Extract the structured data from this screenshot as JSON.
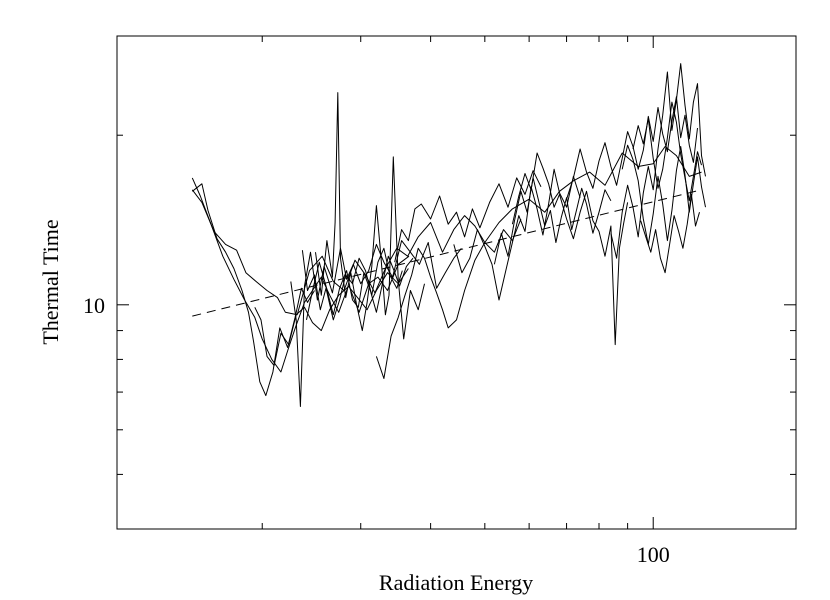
{
  "chart_data": {
    "type": "line",
    "title": "",
    "xlabel": "Radiation Energy",
    "ylabel": "Thermal Time",
    "xscale": "log",
    "yscale": "log",
    "xlim": [
      11,
      180
    ],
    "ylim": [
      4.0,
      30
    ],
    "x_tick_labels": [
      {
        "value": 100,
        "label": "100"
      }
    ],
    "y_tick_labels": [
      {
        "value": 10,
        "label": "10"
      }
    ],
    "x_minor_ticks": [
      20,
      30,
      40,
      50,
      60,
      70,
      80,
      90
    ],
    "y_minor_ticks": [
      5,
      6,
      7,
      8,
      9,
      20
    ],
    "grid": false,
    "legend": "none",
    "line_color": "#000000",
    "series": [
      {
        "style": "solid",
        "x": [
          15.0,
          15.6,
          16.4,
          17.2,
          18.0,
          18.7,
          19.5,
          20.4,
          21.3,
          22.0,
          23.1,
          24.3,
          25.6,
          26.8,
          28.0,
          29.3,
          30.6,
          31.8,
          33.2,
          34.8,
          36.4,
          38.0,
          40.0,
          42.0,
          44.0,
          46.0,
          48.0,
          50.0,
          53.0,
          56.0,
          60.0,
          64.0,
          68.0,
          72.0,
          77.0,
          82.0,
          88.0,
          94.0,
          100.0,
          105.0,
          110.0,
          116.0,
          122.0
        ],
        "y": [
          16.0,
          15.2,
          13.5,
          12.8,
          12.5,
          11.4,
          11.0,
          10.6,
          10.3,
          9.7,
          9.6,
          11.5,
          12.2,
          11.0,
          10.6,
          12.0,
          11.3,
          10.5,
          11.6,
          12.6,
          12.2,
          13.2,
          14.0,
          12.4,
          13.6,
          14.4,
          13.8,
          12.9,
          14.0,
          14.8,
          15.4,
          14.6,
          15.9,
          16.6,
          17.2,
          16.3,
          18.6,
          17.6,
          17.8,
          19.1,
          18.4,
          16.9,
          17.2
        ]
      },
      {
        "style": "solid",
        "x": [
          15.0,
          15.5,
          16.2,
          17.0,
          17.8,
          18.6,
          19.4,
          20.0,
          20.8,
          21.6,
          22.3,
          23.0,
          23.8,
          24.6,
          25.5,
          26.4,
          27.4,
          28.5,
          29.6,
          30.8,
          32.0,
          33.5,
          35.0,
          36.5
        ],
        "y": [
          16.8,
          15.6,
          13.9,
          12.2,
          11.1,
          10.2,
          9.5,
          8.7,
          8.0,
          7.6,
          8.4,
          9.2,
          10.1,
          10.6,
          11.2,
          10.4,
          9.7,
          10.8,
          10.3,
          9.8,
          10.6,
          11.4,
          10.9,
          11.6
        ]
      },
      {
        "style": "solid",
        "x": [
          15.0,
          15.6,
          16.0,
          16.6,
          17.2,
          17.8,
          18.4,
          18.9,
          19.3,
          19.8,
          20.3,
          20.9,
          21.5,
          22.2,
          22.9,
          23.5,
          24.1,
          24.8
        ],
        "y": [
          15.9,
          16.4,
          14.7,
          13.1,
          12.4,
          11.6,
          10.6,
          9.7,
          8.6,
          7.3,
          6.9,
          7.6,
          9.1,
          8.4,
          9.5,
          10.7,
          10.1,
          10.6
        ]
      },
      {
        "style": "solid",
        "x": [
          19.4,
          19.9,
          20.4,
          21.0,
          21.6,
          22.3,
          23.0,
          23.8,
          24.6,
          25.5,
          26.4,
          27.4,
          28.6,
          29.8,
          31.0,
          32.2,
          33.5,
          35.0,
          36.6
        ],
        "y": [
          9.9,
          9.4,
          8.1,
          7.8,
          8.9,
          8.5,
          9.6,
          9.9,
          9.3,
          9.0,
          9.8,
          10.4,
          10.8,
          9.7,
          10.9,
          11.2,
          10.6,
          11.8,
          12.2
        ]
      },
      {
        "style": "solid",
        "x": [
          22.5,
          23.0,
          23.4,
          23.8,
          24.4,
          25.1,
          25.8,
          26.7,
          27.6,
          28.3,
          29.1,
          30.0,
          31.0,
          32.0,
          33.0,
          34.2,
          35.5,
          36.8,
          38.2,
          39.6,
          41.0,
          42.5,
          44.0,
          45.4
        ],
        "y": [
          11.0,
          9.4,
          6.6,
          10.8,
          12.4,
          10.2,
          11.7,
          10.5,
          12.6,
          11.1,
          11.8,
          10.9,
          11.5,
          12.8,
          11.9,
          11.2,
          13.0,
          12.4,
          11.8,
          12.9,
          10.7,
          11.4,
          12.1,
          12.6
        ]
      },
      {
        "style": "solid",
        "x": [
          23.6,
          24.1,
          24.8,
          25.4,
          26.0,
          26.8,
          27.5,
          28.2,
          29.0,
          29.8,
          30.6,
          31.4,
          32.2,
          33.0,
          33.8,
          34.8,
          35.6
        ],
        "y": [
          12.5,
          10.6,
          11.3,
          9.8,
          10.7,
          9.4,
          10.2,
          11.3,
          10.9,
          12.1,
          11.5,
          10.4,
          11.9,
          12.6,
          11.3,
          10.7,
          11.5
        ]
      },
      {
        "style": "solid",
        "x": [
          24.0,
          24.6,
          25.3,
          26.0,
          26.8,
          27.5,
          28.3,
          29.0,
          29.7,
          30.4,
          31.2,
          32.0,
          32.8,
          33.6,
          34.4,
          35.2,
          36.2,
          37.2
        ],
        "y": [
          9.4,
          10.6,
          11.9,
          10.8,
          9.6,
          10.7,
          11.5,
          10.2,
          9.9,
          11.4,
          10.6,
          9.7,
          10.9,
          12.2,
          11.5,
          10.8,
          11.7,
          12.1
        ]
      },
      {
        "style": "solid",
        "x": [
          24.9,
          25.5,
          26.1,
          26.7,
          27.0,
          27.3,
          27.6,
          28.2,
          28.8,
          29.5,
          30.2,
          30.8,
          31.4,
          32.0,
          32.6,
          33.2,
          33.7,
          34.3,
          35.0,
          35.8,
          36.8,
          38.0,
          39.0
        ],
        "y": [
          12.4,
          10.4,
          13.0,
          11.2,
          14.0,
          23.8,
          12.1,
          10.3,
          11.4,
          10.0,
          9.0,
          10.1,
          11.7,
          15.0,
          12.2,
          9.6,
          10.4,
          18.3,
          11.1,
          8.7,
          10.6,
          9.8,
          10.9
        ]
      },
      {
        "style": "solid",
        "x": [
          32.0,
          33.0,
          34.0,
          35.0,
          36.0,
          37.0,
          38.0,
          39.0,
          40.0,
          41.0,
          42.0,
          43.0,
          44.5,
          46.0,
          48.0,
          50.0,
          52.0,
          54.0,
          56.0,
          58.0
        ],
        "y": [
          8.1,
          7.4,
          8.8,
          9.5,
          10.4,
          11.3,
          12.6,
          12.1,
          11.2,
          10.5,
          9.8,
          9.1,
          9.4,
          10.6,
          12.0,
          12.9,
          12.4,
          13.6,
          13.0,
          14.2
        ]
      },
      {
        "style": "solid",
        "x": [
          34.5,
          35.5,
          36.5,
          37.5,
          38.5,
          40.0,
          41.5,
          43.0,
          44.5,
          46.0,
          47.5,
          49.0,
          51.0,
          53.0,
          55.0,
          57.0,
          59.0,
          61.0,
          63.0
        ],
        "y": [
          11.9,
          13.6,
          13.0,
          14.8,
          15.1,
          14.2,
          15.6,
          13.9,
          14.6,
          13.2,
          14.8,
          13.7,
          15.2,
          16.4,
          14.9,
          16.8,
          15.7,
          17.3,
          16.2
        ]
      },
      {
        "style": "solid",
        "x": [
          44.0,
          45.5,
          47.0,
          48.5,
          50.0,
          51.5,
          53.0,
          54.5,
          56.0,
          57.5,
          59.0,
          60.5,
          62.0,
          63.5,
          65.0,
          66.5,
          68.0,
          70.0,
          72.0,
          74.0
        ],
        "y": [
          12.8,
          11.4,
          12.1,
          13.6,
          12.7,
          11.8,
          10.2,
          11.5,
          12.9,
          14.4,
          13.5,
          16.2,
          14.8,
          13.3,
          15.1,
          17.4,
          15.8,
          14.9,
          16.9,
          15.5
        ]
      },
      {
        "style": "solid",
        "x": [
          52.0,
          53.5,
          55.0,
          56.5,
          58.0,
          59.5,
          61.0,
          62.5,
          64.0,
          65.5,
          67.0,
          68.5,
          70.0,
          71.5,
          73.0,
          74.5,
          76.0,
          78.0,
          80.0,
          82.0,
          84.0
        ],
        "y": [
          11.8,
          13.4,
          12.2,
          14.1,
          15.9,
          14.6,
          16.8,
          15.2,
          13.8,
          14.7,
          12.9,
          14.3,
          15.5,
          13.6,
          14.8,
          16.1,
          15.1,
          13.4,
          14.6,
          16.0,
          15.3
        ]
      },
      {
        "style": "solid",
        "x": [
          56.0,
          57.5,
          59.0,
          60.5,
          62.0,
          63.5,
          65.0,
          66.5,
          68.0,
          70.0,
          72.0,
          74.0,
          76.0,
          78.0,
          80.0,
          82.0,
          84.0,
          85.5,
          87.0,
          88.5,
          90.0
        ],
        "y": [
          13.9,
          15.6,
          17.1,
          16.0,
          18.6,
          17.5,
          16.4,
          14.9,
          15.7,
          14.2,
          13.1,
          14.6,
          15.9,
          14.1,
          13.5,
          12.2,
          13.8,
          8.5,
          12.6,
          13.9,
          15.2
        ]
      },
      {
        "style": "solid",
        "x": [
          70.0,
          72.0,
          74.0,
          76.0,
          78.0,
          80.0,
          82.0,
          84.0,
          86.0,
          88.0,
          90.0,
          92.0,
          94.0,
          96.0,
          98.0,
          100.0,
          102.0,
          104.0,
          106.0,
          108.0,
          110.0,
          112.0,
          114.0,
          116.0,
          118.0,
          120.0
        ],
        "y": [
          15.4,
          16.8,
          18.9,
          17.2,
          16.1,
          18.0,
          19.4,
          17.6,
          16.3,
          18.2,
          20.3,
          19.1,
          17.4,
          18.8,
          21.6,
          19.5,
          22.4,
          20.1,
          18.7,
          21.2,
          23.4,
          19.8,
          21.7,
          19.2,
          17.9,
          20.6
        ]
      },
      {
        "style": "solid",
        "x": [
          84.0,
          86.0,
          88.0,
          90.0,
          92.0,
          94.0,
          96.0,
          98.0,
          100.0,
          102.0,
          104.0,
          106.0,
          108.0,
          110.0,
          112.0,
          114.0,
          116.0,
          118.0,
          120.0,
          122.0,
          124.0
        ],
        "y": [
          13.4,
          12.1,
          14.6,
          16.3,
          14.9,
          13.2,
          15.8,
          17.6,
          16.0,
          18.9,
          21.7,
          25.9,
          20.4,
          23.1,
          26.8,
          22.6,
          19.7,
          22.9,
          24.7,
          18.4,
          16.9
        ]
      },
      {
        "style": "solid",
        "x": [
          88.0,
          90.0,
          92.0,
          94.0,
          96.0,
          98.0,
          100.0,
          102.0,
          104.0,
          106.0,
          108.0,
          110.0,
          112.0,
          114.0,
          116.0,
          118.0,
          120.0,
          122.0,
          124.0
        ],
        "y": [
          17.4,
          19.2,
          18.1,
          16.6,
          14.2,
          12.8,
          14.5,
          16.9,
          15.1,
          13.0,
          14.7,
          17.3,
          19.1,
          17.0,
          14.6,
          16.4,
          18.3,
          16.2,
          14.9
        ]
      },
      {
        "style": "solid",
        "x": [
          92.0,
          94.0,
          96.0,
          98.0,
          100.0,
          102.0,
          104.0,
          106.0,
          108.0,
          110.0,
          112.0,
          114.0,
          116.0,
          118.0,
          120.0,
          122.0
        ],
        "y": [
          18.9,
          20.8,
          19.3,
          21.4,
          18.2,
          16.1,
          17.4,
          19.8,
          22.9,
          21.1,
          18.5,
          16.8,
          15.3,
          16.9,
          18.7,
          17.7
        ]
      },
      {
        "style": "solid",
        "x": [
          95.0,
          97.0,
          99.0,
          101.0,
          103.0,
          105.0,
          107.0,
          109.0,
          111.0,
          113.0,
          115.0,
          117.0,
          119.0,
          121.0
        ],
        "y": [
          14.1,
          13.2,
          12.4,
          13.6,
          12.1,
          11.4,
          12.8,
          14.4,
          13.5,
          12.6,
          13.9,
          15.7,
          13.8,
          14.6
        ]
      },
      {
        "style": "dashed",
        "x": [
          15.0,
          122.0
        ],
        "y": [
          9.55,
          16.0
        ]
      }
    ]
  }
}
